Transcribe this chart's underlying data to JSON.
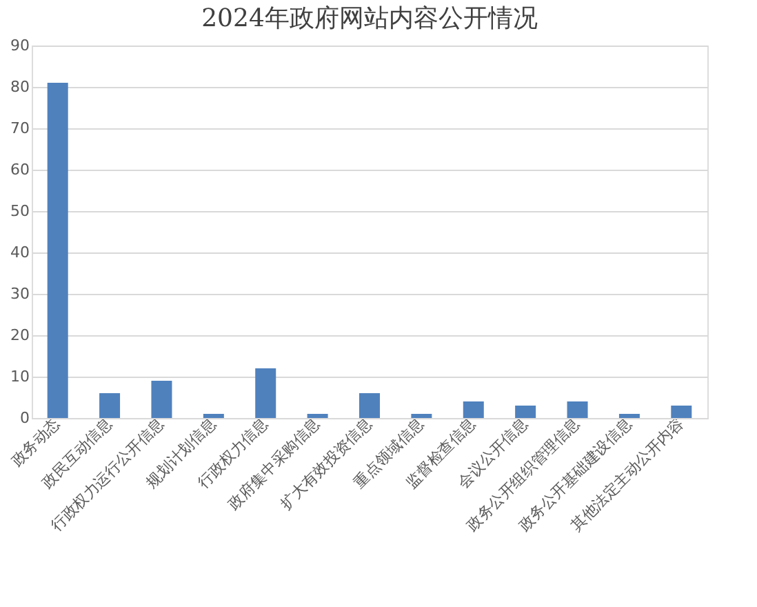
{
  "chart_data": {
    "type": "bar",
    "title": "2024年政府网站内容公开情况",
    "categories": [
      "政务动态",
      "政民互动信息",
      "行政权力运行公开信息",
      "规划计划信息",
      "行政权力信息",
      "政府集中采购信息",
      "扩大有效投资信息",
      "重点领域信息",
      "监督检查信息",
      "会议公开信息",
      "政务公开组织管理信息",
      "政务公开基础建设信息",
      "其他法定主动公开内容"
    ],
    "values": [
      81,
      6,
      9,
      1,
      12,
      1,
      6,
      1,
      4,
      3,
      4,
      1,
      3
    ],
    "color": "#4f81bd",
    "ylim": [
      0,
      90
    ],
    "yticks": [
      0,
      10,
      20,
      30,
      40,
      50,
      60,
      70,
      80,
      90
    ],
    "grid": "y"
  }
}
